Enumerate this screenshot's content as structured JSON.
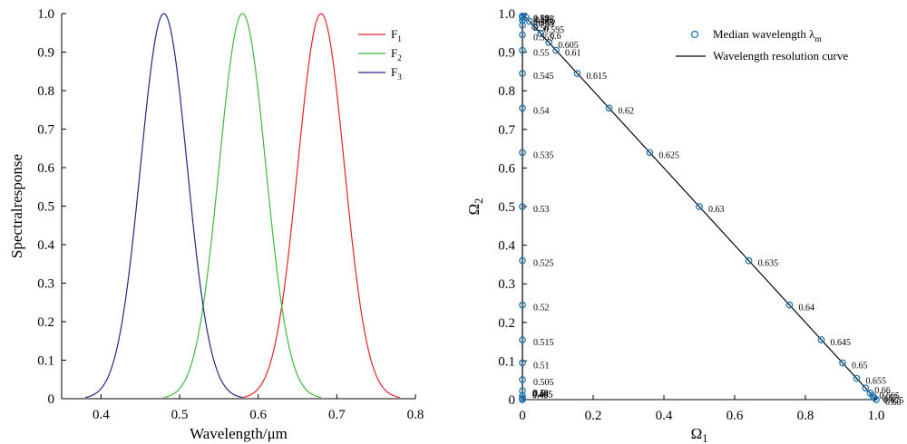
{
  "chart_data": [
    {
      "type": "line",
      "xlabel": "Wavelength/μm",
      "ylabel": "Spectralresponse",
      "xlim": [
        0.35,
        0.8
      ],
      "ylim": [
        0,
        1
      ],
      "xticks": [
        "0.4",
        "0.5",
        "0.6",
        "0.7",
        "0.8"
      ],
      "yticks": [
        "0",
        "0.1",
        "0.2",
        "0.3",
        "0.4",
        "0.5",
        "0.6",
        "0.7",
        "0.8",
        "0.9",
        "1.0"
      ],
      "legend_position": "top-right",
      "series": [
        {
          "name": "F",
          "subscript": "1",
          "color": "#e8202a",
          "center": 0.68,
          "sigma": 0.0296,
          "x_range": [
            0.58,
            0.78
          ]
        },
        {
          "name": "F",
          "subscript": "2",
          "color": "#3fb83c",
          "center": 0.58,
          "sigma": 0.0296,
          "x_range": [
            0.48,
            0.68
          ]
        },
        {
          "name": "F",
          "subscript": "3",
          "color": "#1f2a80",
          "center": 0.48,
          "sigma": 0.0296,
          "x_range": [
            0.38,
            0.58
          ]
        }
      ]
    },
    {
      "type": "scatter",
      "xlabel": "Ω",
      "xlabel_sub": "1",
      "ylabel": "Ω",
      "ylabel_sub": "2",
      "xlim": [
        0,
        1
      ],
      "ylim": [
        0,
        1
      ],
      "xticks": [
        "0",
        "0.2",
        "0.4",
        "0.6",
        "0.8",
        "1.0"
      ],
      "yticks": [
        "0",
        "0.1",
        "0.2",
        "0.3",
        "0.4",
        "0.5",
        "0.6",
        "0.7",
        "0.8",
        "0.9",
        "1.0"
      ],
      "legend_position": "top-right",
      "legend": {
        "markers": "Median wavelength λ",
        "markers_sub": "m",
        "curve": "Wavelength resolution curve"
      },
      "marker_color": "#1f77b4",
      "points_left_axis": [
        {
          "label": "0.5",
          "x": 0,
          "y": 0.023
        },
        {
          "label": "0.505",
          "x": 0,
          "y": 0.052
        },
        {
          "label": "0.51",
          "x": 0,
          "y": 0.095
        },
        {
          "label": "0.515",
          "x": 0,
          "y": 0.155
        },
        {
          "label": "0.52",
          "x": 0,
          "y": 0.245
        },
        {
          "label": "0.525",
          "x": 0,
          "y": 0.36
        },
        {
          "label": "0.53",
          "x": 0,
          "y": 0.5
        },
        {
          "label": "0.535",
          "x": 0,
          "y": 0.64
        },
        {
          "label": "0.54",
          "x": 0,
          "y": 0.755
        },
        {
          "label": "0.545",
          "x": 0,
          "y": 0.845
        },
        {
          "label": "0.55",
          "x": 0,
          "y": 0.905
        },
        {
          "label": "0.555",
          "x": 0,
          "y": 0.945
        },
        {
          "label": "0.56",
          "x": 0,
          "y": 0.97
        },
        {
          "label": "0.565",
          "x": 0,
          "y": 0.983
        },
        {
          "label": "0.57",
          "x": 0,
          "y": 0.99
        },
        {
          "label": "0.575",
          "x": 0,
          "y": 0.993
        },
        {
          "label": "0.58",
          "x": 0,
          "y": 0.994
        }
      ],
      "points_left_bottom": [
        {
          "label": "0.495",
          "x": 0,
          "y": 0.01
        },
        {
          "label": "0.49",
          "x": 0,
          "y": 0.004
        },
        {
          "label": "0.485",
          "x": 0,
          "y": 0.001
        },
        {
          "label": "0.48",
          "x": 0,
          "y": 0
        }
      ],
      "points_diagonal": [
        {
          "label": "0.585",
          "x": 0.01,
          "y": 0.99
        },
        {
          "label": "0.59",
          "x": 0.02,
          "y": 0.98
        },
        {
          "label": "0.595",
          "x": 0.035,
          "y": 0.965
        },
        {
          "label": "0.6",
          "x": 0.052,
          "y": 0.948
        },
        {
          "label": "0.605",
          "x": 0.075,
          "y": 0.925
        },
        {
          "label": "0.61",
          "x": 0.095,
          "y": 0.905
        },
        {
          "label": "0.615",
          "x": 0.155,
          "y": 0.845
        },
        {
          "label": "0.62",
          "x": 0.245,
          "y": 0.755
        },
        {
          "label": "0.625",
          "x": 0.36,
          "y": 0.64
        },
        {
          "label": "0.63",
          "x": 0.5,
          "y": 0.5
        },
        {
          "label": "0.635",
          "x": 0.64,
          "y": 0.36
        },
        {
          "label": "0.64",
          "x": 0.755,
          "y": 0.245
        },
        {
          "label": "0.645",
          "x": 0.845,
          "y": 0.155
        },
        {
          "label": "0.65",
          "x": 0.905,
          "y": 0.095
        },
        {
          "label": "0.655",
          "x": 0.945,
          "y": 0.055
        },
        {
          "label": "0.66",
          "x": 0.97,
          "y": 0.03
        },
        {
          "label": "0.665",
          "x": 0.983,
          "y": 0.017
        },
        {
          "label": "0.67",
          "x": 0.99,
          "y": 0.01
        },
        {
          "label": "0.675",
          "x": 0.995,
          "y": 0.005
        },
        {
          "label": "0.68",
          "x": 1.0,
          "y": 0.0
        }
      ]
    }
  ]
}
